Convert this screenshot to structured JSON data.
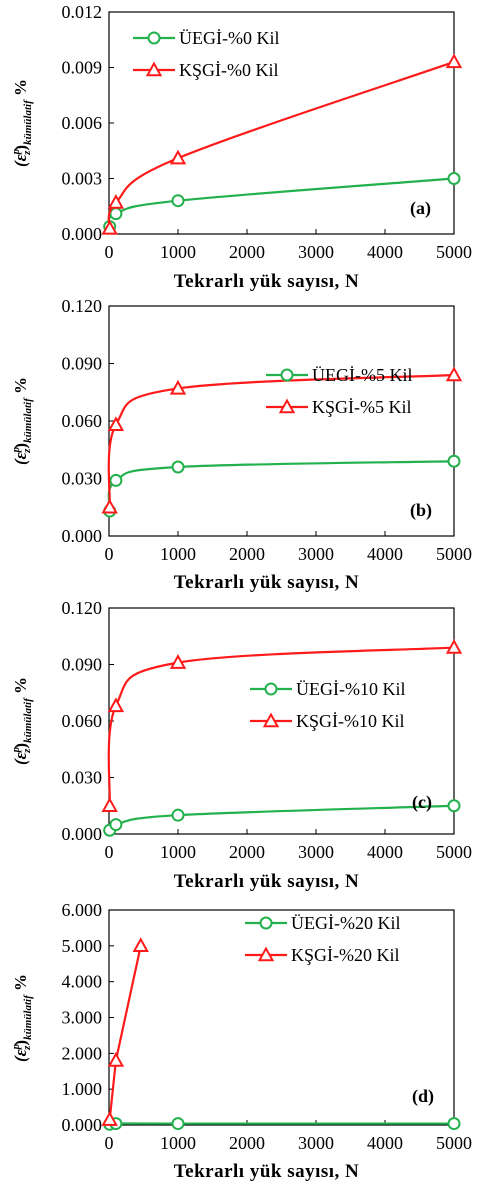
{
  "colors": {
    "green": "#22b14c",
    "red": "#ff1a1a"
  },
  "chart_data": [
    {
      "type": "line",
      "label": "(a)",
      "xlabel": "Tekrarlı yük sayısı, N",
      "ylabel_main": "(ε",
      "ylabel_sup": "p",
      "ylabel_sub": "z",
      "ylabel_close": ")",
      "ylabel_subscript": "kümülatif",
      "ylabel_unit": " %",
      "xlim": [
        0,
        5000
      ],
      "xticks": [
        "0",
        "1000",
        "2000",
        "3000",
        "4000",
        "5000"
      ],
      "ylim": [
        0,
        0.012
      ],
      "yticks": [
        "0.000",
        "0.003",
        "0.006",
        "0.009",
        "0.012"
      ],
      "legend_position": "top-left",
      "series": [
        {
          "name": "ÜEGİ-%0 Kil",
          "color": "green",
          "marker": "circle",
          "x": [
            10,
            100,
            1000,
            5000
          ],
          "y": [
            0.0004,
            0.0011,
            0.0018,
            0.003
          ]
        },
        {
          "name": "KŞGİ-%0 Kil",
          "color": "red",
          "marker": "triangle",
          "x": [
            10,
            100,
            1000,
            5000
          ],
          "y": [
            0.0003,
            0.0017,
            0.0041,
            0.0093
          ]
        }
      ]
    },
    {
      "type": "line",
      "label": "(b)",
      "xlabel": "Tekrarlı yük sayısı, N",
      "ylabel_main": "(ε",
      "ylabel_sup": "p",
      "ylabel_sub": "z",
      "ylabel_close": ")",
      "ylabel_subscript": "kümülatif",
      "ylabel_unit": " %",
      "xlim": [
        0,
        5000
      ],
      "xticks": [
        "0",
        "1000",
        "2000",
        "3000",
        "4000",
        "5000"
      ],
      "ylim": [
        0,
        0.12
      ],
      "yticks": [
        "0.000",
        "0.030",
        "0.060",
        "0.090",
        "0.120"
      ],
      "legend_position": "right",
      "series": [
        {
          "name": "ÜEGİ-%5 Kil",
          "color": "green",
          "marker": "circle",
          "x": [
            10,
            100,
            1000,
            5000
          ],
          "y": [
            0.013,
            0.029,
            0.036,
            0.039
          ]
        },
        {
          "name": "KŞGİ-%5 Kil",
          "color": "red",
          "marker": "triangle",
          "x": [
            10,
            100,
            1000,
            5000
          ],
          "y": [
            0.015,
            0.058,
            0.077,
            0.084
          ]
        }
      ]
    },
    {
      "type": "line",
      "label": "(c)",
      "xlabel": "Tekrarlı yük sayısı, N",
      "ylabel_main": "(ε",
      "ylabel_sup": "p",
      "ylabel_sub": "z",
      "ylabel_close": ")",
      "ylabel_subscript": "kümülatif",
      "ylabel_unit": " %",
      "xlim": [
        0,
        5000
      ],
      "xticks": [
        "0",
        "1000",
        "2000",
        "3000",
        "4000",
        "5000"
      ],
      "ylim": [
        0,
        0.12
      ],
      "yticks": [
        "0.000",
        "0.030",
        "0.060",
        "0.090",
        "0.120"
      ],
      "legend_position": "right",
      "series": [
        {
          "name": "ÜEGİ-%10 Kil",
          "color": "green",
          "marker": "circle",
          "x": [
            10,
            100,
            1000,
            5000
          ],
          "y": [
            0.002,
            0.005,
            0.01,
            0.015
          ]
        },
        {
          "name": "KŞGİ-%10 Kil",
          "color": "red",
          "marker": "triangle",
          "x": [
            10,
            100,
            1000,
            5000
          ],
          "y": [
            0.015,
            0.068,
            0.091,
            0.099
          ]
        }
      ]
    },
    {
      "type": "line",
      "label": "(d)",
      "xlabel": "Tekrarlı yük sayısı, N",
      "ylabel_main": "(ε",
      "ylabel_sup": "p",
      "ylabel_sub": "z",
      "ylabel_close": ")",
      "ylabel_subscript": "kümülatif",
      "ylabel_unit": " %",
      "xlim": [
        0,
        5000
      ],
      "xticks": [
        "0",
        "1000",
        "2000",
        "3000",
        "4000",
        "5000"
      ],
      "ylim": [
        0,
        6
      ],
      "yticks": [
        "0.000",
        "1.000",
        "2.000",
        "3.000",
        "4.000",
        "5.000",
        "6.000"
      ],
      "legend_position": "top-right",
      "series": [
        {
          "name": "ÜEGİ-%20 Kil",
          "color": "green",
          "marker": "circle",
          "x": [
            10,
            100,
            1000,
            5000
          ],
          "y": [
            0.02,
            0.04,
            0.04,
            0.04
          ]
        },
        {
          "name": "KŞGİ-%20 Kil",
          "color": "red",
          "marker": "triangle",
          "x": [
            10,
            100,
            460
          ],
          "y": [
            0.15,
            1.8,
            5.0
          ]
        }
      ]
    }
  ]
}
